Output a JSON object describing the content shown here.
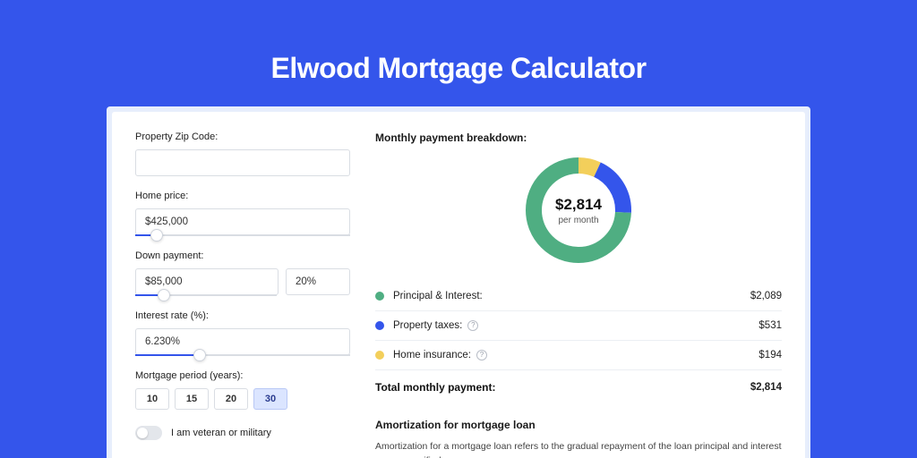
{
  "page": {
    "title": "Elwood Mortgage Calculator",
    "bg_color": "#3455eb",
    "panel_bg": "#e7eefc",
    "card_bg": "#ffffff"
  },
  "form": {
    "zip": {
      "label": "Property Zip Code:",
      "value": ""
    },
    "price": {
      "label": "Home price:",
      "value": "$425,000",
      "slider_pct": 10
    },
    "down": {
      "label": "Down payment:",
      "amount": "$85,000",
      "percent": "20%",
      "slider_pct": 20
    },
    "rate": {
      "label": "Interest rate (%):",
      "value": "6.230%",
      "slider_pct": 30
    },
    "period": {
      "label": "Mortgage period (years):",
      "options": [
        "10",
        "15",
        "20",
        "30"
      ],
      "selected_index": 3
    },
    "veteran": {
      "label": "I am veteran or military",
      "checked": false
    }
  },
  "breakdown": {
    "title": "Monthly payment breakdown:",
    "center_value": "$2,814",
    "center_sub": "per month",
    "items": [
      {
        "label": "Principal & Interest:",
        "value": "$2,089",
        "color": "#4fae82",
        "has_help": false,
        "numeric": 2089
      },
      {
        "label": "Property taxes:",
        "value": "$531",
        "color": "#3455eb",
        "has_help": true,
        "numeric": 531
      },
      {
        "label": "Home insurance:",
        "value": "$194",
        "color": "#f3cf5b",
        "has_help": true,
        "numeric": 194
      }
    ],
    "total_label": "Total monthly payment:",
    "total_value": "$2,814",
    "donut": {
      "stroke_width": 18,
      "radius": 50,
      "bg_color": "#ffffff"
    }
  },
  "amortization": {
    "title": "Amortization for mortgage loan",
    "text": "Amortization for a mortgage loan refers to the gradual repayment of the loan principal and interest over a specified"
  },
  "typography": {
    "title_fontsize": 32,
    "label_fontsize": 11,
    "input_fontsize": 11.5,
    "section_title_fontsize": 12,
    "donut_value_fontsize": 17,
    "donut_sub_fontsize": 10
  }
}
